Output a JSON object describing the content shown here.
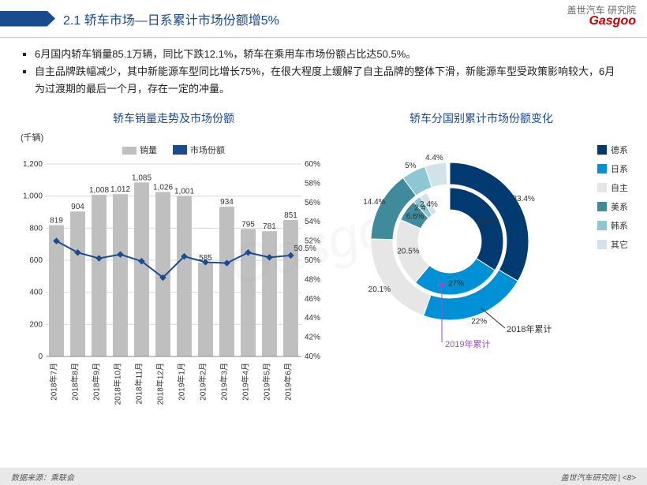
{
  "header": {
    "title": "2.1 轿车市场—日系累计市场份额增5%",
    "logo_top": "盖世汽车 研究院",
    "logo_main": "Gasgoo"
  },
  "bullets": [
    "6月国内轿车销量85.1万辆，同比下跌12.1%，轿车在乘用车市场份额占比达50.5%。",
    "自主品牌跌幅减少，其中新能源车型同比增长75%，在很大程度上缓解了自主品牌的整体下滑，新能源车型受政策影响较大，6月为过渡期的最后一个月，存在一定的冲量。"
  ],
  "combo_chart": {
    "title": "轿车销量走势及市场份额",
    "y1_label": "(千辆)",
    "legend_bar": "销量",
    "legend_line": "市场份额",
    "categories": [
      "2018年7月",
      "2018年8月",
      "2018年9月",
      "2018年10月",
      "2018年11月",
      "2018年12月",
      "2019年1月",
      "2019年2月",
      "2019年3月",
      "2019年4月",
      "2019年5月",
      "2019年6月"
    ],
    "bar_values": [
      819,
      904,
      1008,
      1012,
      1085,
      1026,
      1001,
      585,
      934,
      795,
      781,
      851
    ],
    "line_values": [
      52.0,
      50.8,
      50.2,
      50.6,
      49.9,
      48.2,
      50.4,
      49.8,
      49.7,
      50.8,
      50.3,
      50.5
    ],
    "line_label_last": "50.5%",
    "y1_lim": [
      0,
      1200
    ],
    "y1_step": 200,
    "y2_lim": [
      40,
      60
    ],
    "y2_step": 2,
    "bar_color": "#bfbfbf",
    "line_color": "#1a4b8f",
    "grid_color": "#d9d9d9",
    "text_color": "#333333",
    "font_size": 10
  },
  "donut": {
    "title": "轿车分国别累计市场份额变化",
    "rings": {
      "outer": {
        "label": "2018年累计",
        "data": [
          {
            "name": "德系",
            "value": 33.4,
            "color": "#003a70"
          },
          {
            "name": "日系",
            "value": 22.0,
            "color": "#0090d6"
          },
          {
            "name": "自主",
            "value": 20.1,
            "color": "#e6e6e6"
          },
          {
            "name": "美系",
            "value": 14.4,
            "color": "#3f8a9b"
          },
          {
            "name": "韩系",
            "value": 5.0,
            "color": "#8ec6d6"
          },
          {
            "name": "其它",
            "value": 4.4,
            "color": "#cfe3e8"
          }
        ]
      },
      "inner": {
        "label": "2019年累计",
        "data": [
          {
            "name": "德系",
            "value": 34.1,
            "color": "#003a70"
          },
          {
            "name": "日系",
            "value": 27.0,
            "color": "#0090d6"
          },
          {
            "name": "自主",
            "value": 20.5,
            "color": "#e6e6e6"
          },
          {
            "name": "美系",
            "value": 6.6,
            "color": "#3f8a9b"
          },
          {
            "name": "韩系",
            "value": 2.4,
            "color": "#8ec6d6"
          },
          {
            "name": "其它",
            "value": 2.4,
            "color": "#cfe3e8"
          }
        ]
      }
    },
    "center_color": "#ffffff",
    "legend_items": [
      {
        "label": "德系",
        "color": "#003a70"
      },
      {
        "label": "日系",
        "color": "#0090d6"
      },
      {
        "label": "自主",
        "color": "#e6e6e6"
      },
      {
        "label": "美系",
        "color": "#3f8a9b"
      },
      {
        "label": "韩系",
        "color": "#8ec6d6"
      },
      {
        "label": "其它",
        "color": "#cfe3e8"
      }
    ],
    "inner_marker_color": "#9b4dca"
  },
  "footer": {
    "source": "数据来源：乘联会",
    "brand": "盖世汽车研究院",
    "page": "<8>"
  },
  "watermark": "Gasgoo"
}
